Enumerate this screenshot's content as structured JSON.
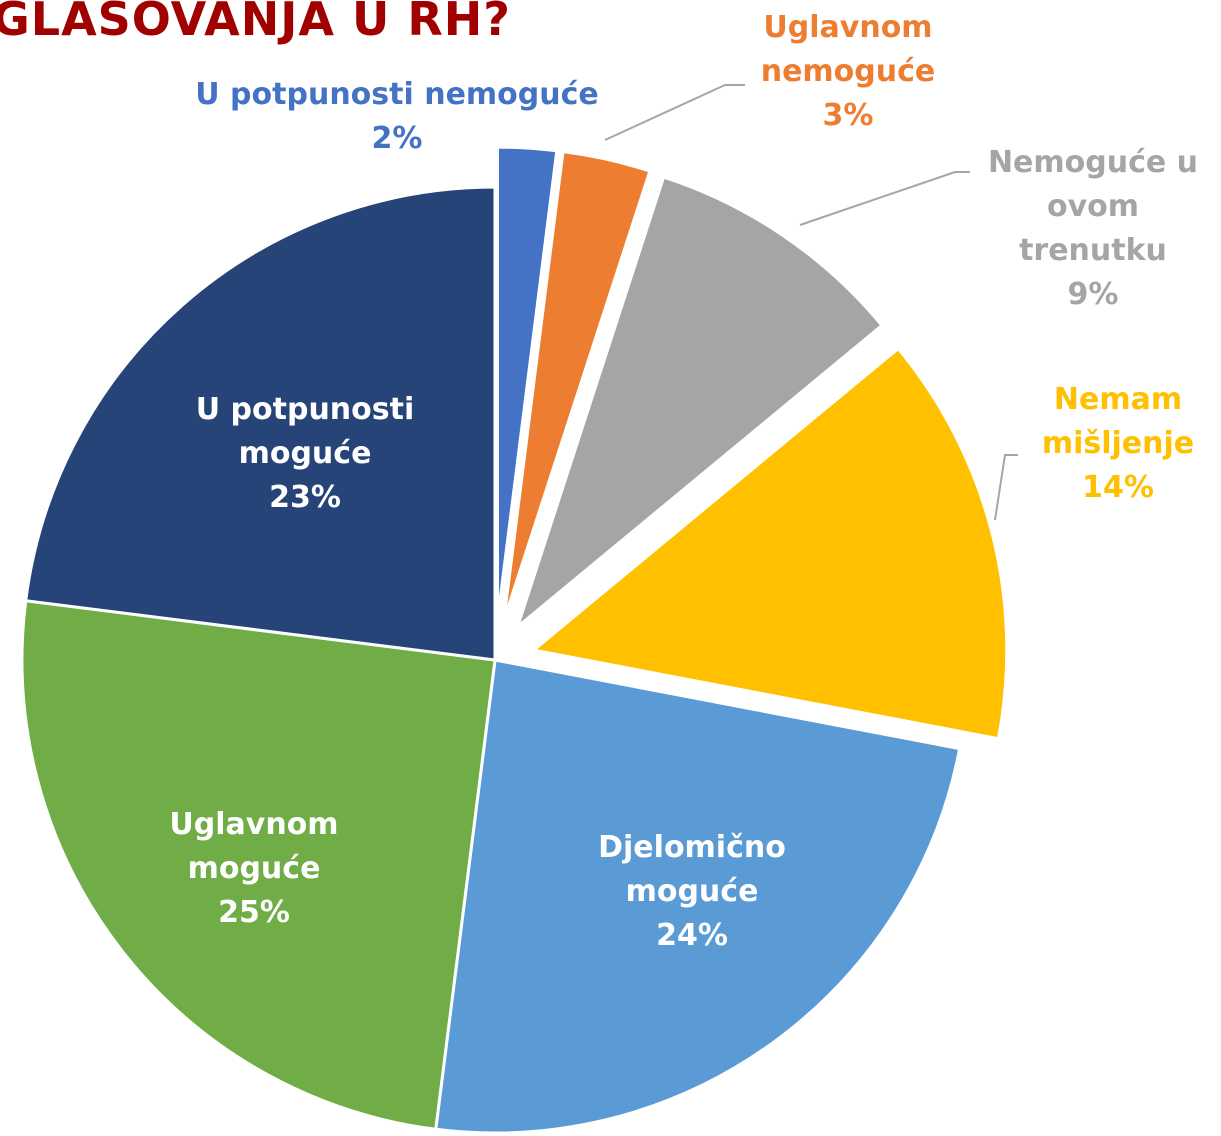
{
  "chart_data": {
    "type": "pie",
    "title": "GLASOVANJA U RH?",
    "categories": [
      "U potpunosti nemoguće",
      "Uglavnom nemoguće",
      "Nemoguće u ovom trenutku",
      "Nemam mišljenje",
      "Djelomično moguće",
      "Uglavnom moguće",
      "U potpunosti moguće"
    ],
    "values": [
      2,
      3,
      9,
      14,
      24,
      25,
      23
    ],
    "value_labels": [
      "2%",
      "3%",
      "9%",
      "14%",
      "24%",
      "25%",
      "23%"
    ],
    "colors": [
      "#4472c4",
      "#ed7d31",
      "#a5a5a5",
      "#ffc000",
      "#5b9bd5",
      "#70ad47",
      "#264478"
    ],
    "exploded": [
      true,
      true,
      true,
      true,
      false,
      false,
      false
    ]
  }
}
